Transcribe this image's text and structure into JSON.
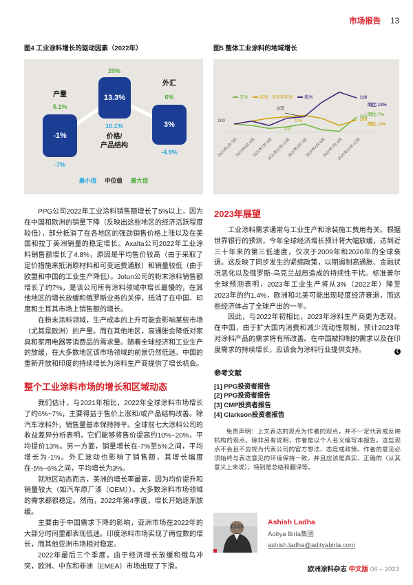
{
  "page": {
    "header_label": "市场报告",
    "page_number": "13"
  },
  "chart_data": [
    {
      "type": "bar",
      "title": "图4 工业涂料增长的驱动因素（2022年）",
      "categories": [
        "产量",
        "价格/\n产品结构",
        "外汇"
      ],
      "series": [
        {
          "name": "最小值",
          "color": "#29a8e0",
          "values": [
            -7,
            10.1,
            -4.9
          ],
          "labels": [
            "-7%",
            "10.1%",
            "-4.9%"
          ]
        },
        {
          "name": "中位值",
          "color": "#1b3e94",
          "values": [
            -1,
            13.3,
            3
          ],
          "labels": [
            "-1%",
            "13.3%",
            "3%"
          ]
        },
        {
          "name": "最大值",
          "color": "#57ad3f",
          "values": [
            5.1,
            20,
            6
          ],
          "labels": [
            "5.1%",
            "20%",
            "6%"
          ]
        }
      ],
      "legend_position": "bottom",
      "grid": false
    },
    {
      "type": "line",
      "title": "图5 整体工业涂料的地域增长",
      "x": [
        "2021年1月-3月",
        "2021年4月-6月",
        "2021年7月-9月",
        "2021年10月-12月",
        "2022年1月-3月",
        "2022年4月-6月",
        "2022年7月-9月",
        "2022年10月-12月"
      ],
      "series": [
        {
          "name": "亚洲",
          "color": "#7ab648",
          "values": [
            100,
            99,
            97,
            98,
            100,
            96,
            95,
            105
          ],
          "end_label": "105",
          "yoy_label": "同比 7%"
        },
        {
          "name": "欧洲、中东和非洲",
          "color": "#cfa513",
          "values": [
            100,
            102,
            104,
            105,
            106,
            104,
            99,
            103
          ],
          "end_label": "103",
          "yoy_label": "同比 -2%"
        },
        {
          "name": "美洲",
          "color": "#45297e",
          "values": [
            100,
            102,
            99,
            104,
            105,
            115,
            122,
            118
          ],
          "end_label": "118",
          "yoy_label": "同比 13%"
        }
      ],
      "annotations": [
        {
          "text": "100",
          "note": "index-start"
        },
        {
          "text": "105",
          "note": "americas-2022q1"
        },
        {
          "text": "106",
          "note": "emea-2022q1"
        },
        {
          "text": "100",
          "note": "asia-2022q1"
        }
      ],
      "ylim": [
        92,
        125
      ],
      "legend_position": "top",
      "grid": false
    }
  ],
  "article": {
    "left": {
      "p1": "PPG公司2022年工业涂料销售额增长了5%以上，因为在中国和欧洲的销量下降（反映出这些地区的经济活跃程度较低），部分抵消了在各地区的强劲销售价格上涨以及在美国和拉丁美洲销量的稳定增长。Axalta公司2022年工业涂料销售额增长了4.8%，原因是平均售价较高（由于采取了定价措施来抵消原材料和可变运费通胀）和销量较低（由于欧盟和中国的工业生产降低）。Jotun公司的粉末涂料销售额增长了约7%，是该公司所有涂料领域中增长最慢的，在其他地区的增长放缓和俄罗斯业务的关停，抵消了在中国、印度和土耳其市场上销售额的增长。",
      "p2": "在粉末涂料领域，生产成本的上升可能会影响某些市场（尤其是欧洲）的产量。而在其他地区，高通胀会降低对家具和家用电器等消费品的需求量。随着全球经济和工业生产的放缓，在大多数地区该市场领域的前景仍然低迷。中国的重新开放和印度的持续增长为涂料生产商提供了增长机会。",
      "section_title": "整个工业涂料市场的增长和区域动态",
      "p3": "我们估计，与2021年相比，2022年全球涂料市场增长了约6%~7%，主要得益于售价上涨和/或产品结构改善。除汽车涂料外，销售量基本保持持平。全球前七大涂料公司的收益差异分析表明，它们能够将售价提高约10%~20%，平均提价13%。另一方面，销量增长在-7%至5%之间，平均增长为-1%。外汇波动也影响了销售额，其增长幅度在-5%~6%之间，平均增长为3%。",
      "p4": "就地区动态而言，美洲的增长率最高，因为均价提升和销量较大（如汽车原厂漆（OEM））。大多数涂料市场领域的需求都很稳定。然而，2022年第4季度，增长开始逐渐放缓。",
      "p5": "主要由于中国需求下降的影响，亚洲市场在2022年的大部分时间里都表现低迷。印度涂料市场实现了两位数的增长，而其他亚洲市场相对稳定。",
      "p6": "2022年最后三个季度，由于经济增长放缓和俄乌冲突，欧洲、中东和非洲（EMEA）市场出现了下滑。"
    },
    "right": {
      "section_title": "2023年展望",
      "p1": "工业涂料需求通常与工业生产和涂装施工费用有关。根据世界银行的预测，今年全球经济增长预计将大幅放缓，达到近三十年来的第三低速度，仅次于2009年和2020年的全球衰退。这反映了同步发生的紧缩政策，以期遏制高通胀、金融状况恶化以及俄罗斯-乌克兰战局造成的持续性干扰。标准普尔全球预测表明，2023年工业生产将从3%（2022年）降至2023年的约1.4%，欧洲和北美可能出现轻度经济衰退，而这些经济体占了全球产出的一半。",
      "p2": "因此，与2022年初相比，2023年涂料生产商更为悲观。在中国，由于扩大国内消费和减少流动性限制，预计2023年对涂料产品的需求将有所改善。在中国被抑制的需求以及在印度需求的持续增长，应该会为涂料行业提供支持。",
      "end_marker": "❮"
    }
  },
  "references": {
    "title": "参考文献",
    "items": [
      "[1] PPG投资者报告",
      "[2] PPG投资者报告",
      "[3] CMP投资者报告",
      "[4] Clarkson投资者报告"
    ],
    "disclaimer": "免责声明：上文表达的观点为作者的观点，并不一定代表或反映机构的观点。除非另有说明，作者是以个人名义编写本报告。这些观点不会且不应视为代表公司的官方想法、态度或政策。作者的意见必须始终与表达意见的环境保持一致，并且应该是真实、正确的（从其意义上来说），特别是总结和翻译等。"
  },
  "author": {
    "name": "Ashish Ladha",
    "org": "Aditya Birla集团",
    "email": "ashish.ladha@adityabirla.com"
  },
  "footer": {
    "magazine": "欧洲涂料杂志",
    "edition": "中文版",
    "issue": "06 – 2023"
  }
}
